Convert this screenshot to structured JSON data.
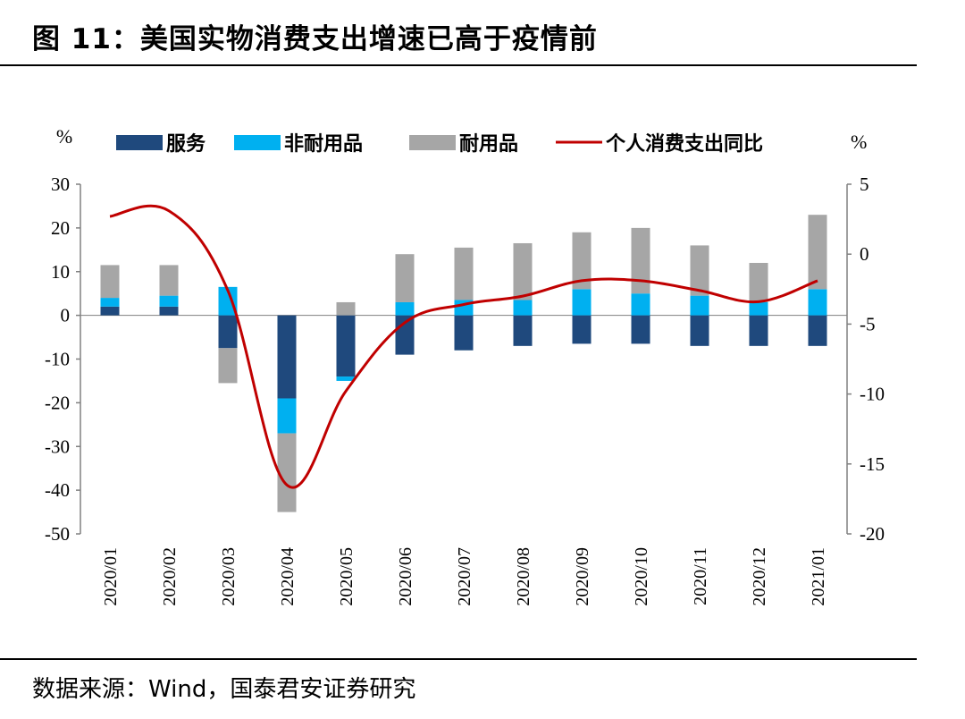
{
  "title": "图 11：美国实物消费支出增速已高于疫情前",
  "source": "数据来源：Wind，国泰君安证券研究",
  "colors": {
    "services": "#1f497d",
    "nondurable": "#00b0f0",
    "durable": "#a6a6a6",
    "line": "#c00000",
    "axis": "#808080"
  },
  "chart_data": {
    "type": "bar",
    "stacked": true,
    "categories": [
      "2020/01",
      "2020/02",
      "2020/03",
      "2020/04",
      "2020/05",
      "2020/06",
      "2020/07",
      "2020/08",
      "2020/09",
      "2020/10",
      "2020/11",
      "2020/12",
      "2021/01"
    ],
    "left_unit": "%",
    "right_unit": "%",
    "ylim_left": [
      -50,
      30
    ],
    "yticks_left": [
      "30",
      "20",
      "10",
      "0",
      "-10",
      "-20",
      "-30",
      "-40",
      "-50"
    ],
    "ylim_right": [
      -20,
      5
    ],
    "yticks_right": [
      "5",
      "0",
      "-5",
      "-10",
      "-15",
      "-20"
    ],
    "series": [
      {
        "name": "服务",
        "kind": "bar",
        "axis": "left",
        "values": [
          2,
          2,
          -7.5,
          -19,
          -14,
          -9,
          -8,
          -7,
          -6.5,
          -6.5,
          -7,
          -7,
          -7
        ]
      },
      {
        "name": "非耐用品",
        "kind": "bar",
        "axis": "left",
        "values": [
          2,
          2.5,
          6.5,
          -8,
          -1,
          3,
          3.5,
          3.5,
          6,
          5,
          4.5,
          3,
          6
        ]
      },
      {
        "name": "耐用品",
        "kind": "bar",
        "axis": "left",
        "values": [
          7.5,
          7,
          -8,
          -18,
          3,
          11,
          12,
          13,
          13,
          15,
          11.5,
          9,
          17
        ]
      },
      {
        "name": "个人消费支出同比",
        "kind": "line",
        "axis": "right",
        "values": [
          2.7,
          3.1,
          -2.6,
          -16.5,
          -9.8,
          -4.9,
          -3.6,
          -3.0,
          -1.9,
          -1.9,
          -2.6,
          -3.4,
          -1.9
        ]
      }
    ]
  }
}
